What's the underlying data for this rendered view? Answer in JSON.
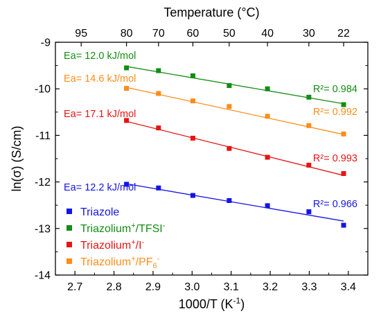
{
  "chart_data": {
    "type": "scatter",
    "xlabel": "1000/T (K",
    "xlabel_sup": "-1",
    "xlabel_end": ")",
    "ylabel": "ln(σ) (S/cm)",
    "top_label": "Temperature (°C)",
    "xlim": [
      2.65,
      3.45
    ],
    "ylim": [
      -14,
      -9
    ],
    "x_ticks": [
      "2.7",
      "2.8",
      "2.9",
      "3.0",
      "3.1",
      "3.2",
      "3.3",
      "3.4"
    ],
    "y_ticks": [
      "-9",
      "-10",
      "-11",
      "-12",
      "-13",
      "-14"
    ],
    "top_ticks": [
      {
        "label": "95",
        "x": 2.716
      },
      {
        "label": "80",
        "x": 2.832
      },
      {
        "label": "70",
        "x": 2.914
      },
      {
        "label": "60",
        "x": 3.002
      },
      {
        "label": "50",
        "x": 3.095
      },
      {
        "label": "40",
        "x": 3.193
      },
      {
        "label": "30",
        "x": 3.299
      },
      {
        "label": "22",
        "x": 3.388
      }
    ],
    "legend_position": "bottom-left",
    "series": [
      {
        "name": "Triazole",
        "name_sup": "",
        "name_rest": "",
        "name_sub": "",
        "color": "#1414e6",
        "x": [
          2.832,
          2.914,
          3.002,
          3.095,
          3.193,
          3.299,
          3.388
        ],
        "y": [
          -12.05,
          -12.13,
          -12.29,
          -12.4,
          -12.51,
          -12.64,
          -12.93
        ],
        "fit": {
          "x": [
            2.832,
            3.388
          ],
          "y": [
            -12.04,
            -12.84
          ]
        },
        "ea_label": "Ea= 12.2 kJ/mol",
        "r2_label": "R²= 0.966"
      },
      {
        "name": "Triazolium",
        "name_sup": "+",
        "name_rest": "/TFSI",
        "name_sup2": "-",
        "name_sub": "",
        "color": "#148c14",
        "x": [
          2.832,
          2.914,
          3.002,
          3.095,
          3.193,
          3.299,
          3.388
        ],
        "y": [
          -9.55,
          -9.61,
          -9.72,
          -9.93,
          -10.0,
          -10.18,
          -10.34
        ],
        "fit": {
          "x": [
            2.832,
            3.388
          ],
          "y": [
            -9.52,
            -10.32
          ]
        },
        "ea_label": "Ea= 12.0 kJ/mol",
        "r2_label": "R²= 0.984"
      },
      {
        "name": "Triazolium",
        "name_sup": "+",
        "name_rest": "/I",
        "name_sup2": "-",
        "name_sub": "",
        "color": "#e61414",
        "x": [
          2.832,
          2.914,
          3.002,
          3.095,
          3.193,
          3.299,
          3.388
        ],
        "y": [
          -10.68,
          -10.84,
          -11.06,
          -11.28,
          -11.47,
          -11.64,
          -11.82
        ],
        "fit": {
          "x": [
            2.832,
            3.388
          ],
          "y": [
            -10.7,
            -11.86
          ]
        },
        "ea_label": "Ea= 17.1 kJ/mol",
        "r2_label": "R²= 0.993"
      },
      {
        "name": "Triazolium",
        "name_sup": "+",
        "name_rest": "/PF",
        "name_sup2": "",
        "name_sub": "6",
        "name_sup3": "-",
        "color": "#ff8c1a",
        "x": [
          2.832,
          2.914,
          3.002,
          3.095,
          3.193,
          3.299,
          3.388
        ],
        "y": [
          -9.99,
          -10.1,
          -10.26,
          -10.38,
          -10.59,
          -10.79,
          -10.97
        ],
        "fit": {
          "x": [
            2.832,
            3.388
          ],
          "y": [
            -9.97,
            -10.98
          ]
        },
        "ea_label": "Ea= 14.6 kJ/mol",
        "r2_label": "R²= 0.992"
      }
    ]
  }
}
